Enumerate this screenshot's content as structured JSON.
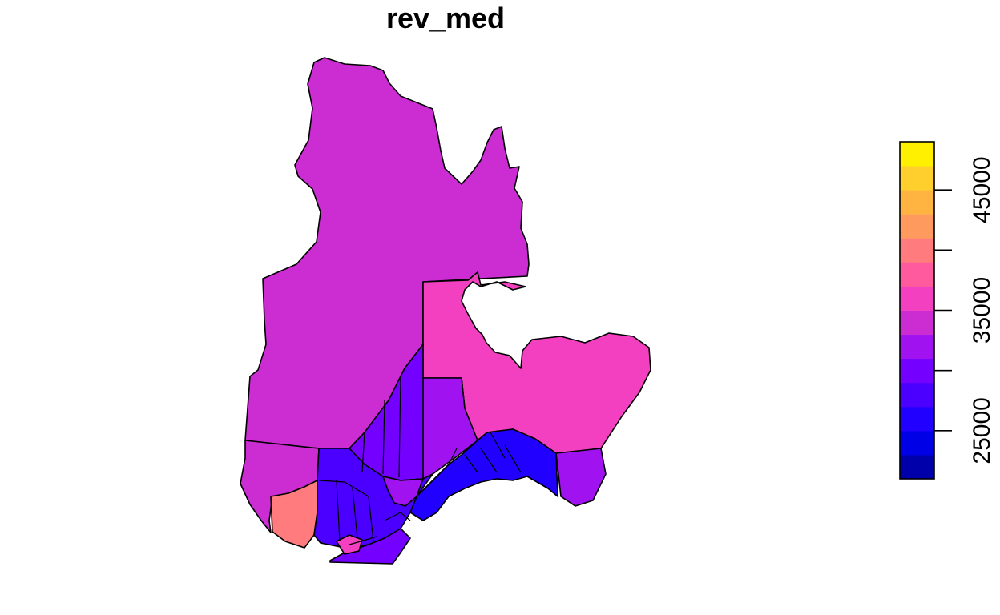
{
  "title": "rev_med",
  "legend": {
    "tick_labels": [
      "25000",
      "35000",
      "45000"
    ],
    "tick_values": [
      25000,
      30000,
      35000,
      40000,
      45000
    ],
    "range": [
      21000,
      49000
    ],
    "colors": [
      "#0000AA",
      "#0000E6",
      "#2200FF",
      "#4B00FF",
      "#7400FF",
      "#A012F0",
      "#CB2DD3",
      "#F340C1",
      "#FF5A9E",
      "#FF7B7D",
      "#FF9A5F",
      "#FFB441",
      "#FFD02D",
      "#FFF000"
    ]
  },
  "regions": [
    {
      "id": "nord-du-quebec",
      "color": "#CB2DD3"
    },
    {
      "id": "cote-nord-east",
      "color": "#F340C1"
    },
    {
      "id": "saguenay",
      "color": "#A012F0"
    },
    {
      "id": "mauricie",
      "color": "#7400FF"
    },
    {
      "id": "bas-saint-laurent",
      "color": "#2200FF"
    },
    {
      "id": "gaspesie",
      "color": "#A012F0"
    },
    {
      "id": "abitibi",
      "color": "#CB2DD3"
    },
    {
      "id": "outaouais",
      "color": "#FF7B7D"
    },
    {
      "id": "laurentides",
      "color": "#4B00FF"
    },
    {
      "id": "capitale-nationale",
      "color": "#A012F0"
    },
    {
      "id": "estrie",
      "color": "#7400FF"
    },
    {
      "id": "montreal",
      "color": "#F340C1"
    }
  ]
}
